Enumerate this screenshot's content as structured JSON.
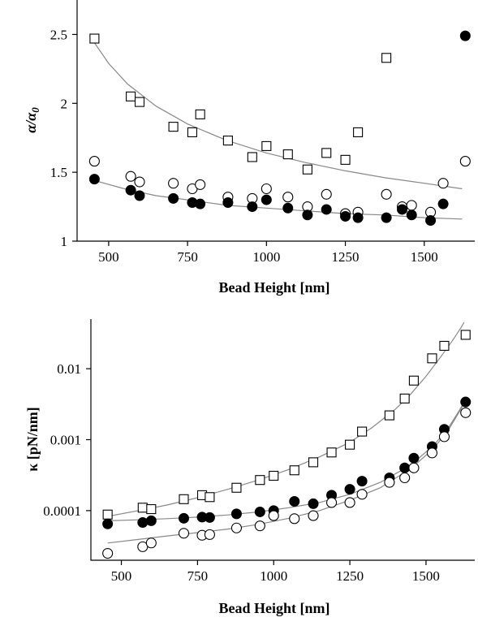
{
  "chart_data": [
    {
      "type": "scatter",
      "xlabel": "Bead Height [nm]",
      "ylabel": "α/α0",
      "ylabel_parts": {
        "main": "α/α",
        "sub": "0"
      },
      "xlim": [
        400,
        1660
      ],
      "ylim": [
        1,
        2.75
      ],
      "xticks": [
        500,
        750,
        1000,
        1250,
        1500
      ],
      "xtick_labels": [
        "500",
        "750",
        "1000",
        "1250",
        "1500"
      ],
      "yticks": [
        1,
        1.5,
        2,
        2.5
      ],
      "ytick_labels": [
        "1",
        "1.5",
        "2",
        "2.5"
      ],
      "grid": false,
      "series": [
        {
          "marker": "open-square",
          "points": [
            {
              "x": 455,
              "y": 2.47
            },
            {
              "x": 570,
              "y": 2.05
            },
            {
              "x": 598,
              "y": 2.01
            },
            {
              "x": 705,
              "y": 1.83
            },
            {
              "x": 765,
              "y": 1.79
            },
            {
              "x": 790,
              "y": 1.92
            },
            {
              "x": 878,
              "y": 1.73
            },
            {
              "x": 955,
              "y": 1.61
            },
            {
              "x": 1000,
              "y": 1.69
            },
            {
              "x": 1068,
              "y": 1.63
            },
            {
              "x": 1130,
              "y": 1.52
            },
            {
              "x": 1190,
              "y": 1.64
            },
            {
              "x": 1250,
              "y": 1.59
            },
            {
              "x": 1290,
              "y": 1.79
            },
            {
              "x": 1380,
              "y": 2.33
            }
          ],
          "fit": [
            {
              "x": 455,
              "y": 2.44
            },
            {
              "x": 500,
              "y": 2.29
            },
            {
              "x": 560,
              "y": 2.14
            },
            {
              "x": 650,
              "y": 1.98
            },
            {
              "x": 750,
              "y": 1.85
            },
            {
              "x": 875,
              "y": 1.73
            },
            {
              "x": 1000,
              "y": 1.64
            },
            {
              "x": 1125,
              "y": 1.57
            },
            {
              "x": 1250,
              "y": 1.51
            },
            {
              "x": 1375,
              "y": 1.46
            },
            {
              "x": 1500,
              "y": 1.42
            },
            {
              "x": 1620,
              "y": 1.38
            }
          ]
        },
        {
          "marker": "open-circle",
          "points": [
            {
              "x": 455,
              "y": 1.58
            },
            {
              "x": 570,
              "y": 1.47
            },
            {
              "x": 598,
              "y": 1.43
            },
            {
              "x": 705,
              "y": 1.42
            },
            {
              "x": 765,
              "y": 1.38
            },
            {
              "x": 790,
              "y": 1.41
            },
            {
              "x": 878,
              "y": 1.32
            },
            {
              "x": 955,
              "y": 1.31
            },
            {
              "x": 1000,
              "y": 1.38
            },
            {
              "x": 1068,
              "y": 1.32
            },
            {
              "x": 1130,
              "y": 1.25
            },
            {
              "x": 1190,
              "y": 1.34
            },
            {
              "x": 1250,
              "y": 1.2
            },
            {
              "x": 1290,
              "y": 1.21
            },
            {
              "x": 1380,
              "y": 1.34
            },
            {
              "x": 1430,
              "y": 1.25
            },
            {
              "x": 1460,
              "y": 1.26
            },
            {
              "x": 1520,
              "y": 1.21
            },
            {
              "x": 1560,
              "y": 1.42
            },
            {
              "x": 1630,
              "y": 1.58
            }
          ]
        },
        {
          "marker": "filled-circle",
          "points": [
            {
              "x": 455,
              "y": 1.45
            },
            {
              "x": 570,
              "y": 1.37
            },
            {
              "x": 598,
              "y": 1.33
            },
            {
              "x": 705,
              "y": 1.31
            },
            {
              "x": 765,
              "y": 1.28
            },
            {
              "x": 790,
              "y": 1.27
            },
            {
              "x": 878,
              "y": 1.28
            },
            {
              "x": 955,
              "y": 1.25
            },
            {
              "x": 1000,
              "y": 1.3
            },
            {
              "x": 1068,
              "y": 1.24
            },
            {
              "x": 1130,
              "y": 1.19
            },
            {
              "x": 1190,
              "y": 1.23
            },
            {
              "x": 1250,
              "y": 1.18
            },
            {
              "x": 1290,
              "y": 1.17
            },
            {
              "x": 1380,
              "y": 1.17
            },
            {
              "x": 1430,
              "y": 1.23
            },
            {
              "x": 1460,
              "y": 1.19
            },
            {
              "x": 1520,
              "y": 1.15
            },
            {
              "x": 1560,
              "y": 1.27
            },
            {
              "x": 1630,
              "y": 2.49
            }
          ],
          "fit": [
            {
              "x": 455,
              "y": 1.44
            },
            {
              "x": 550,
              "y": 1.38
            },
            {
              "x": 650,
              "y": 1.33
            },
            {
              "x": 750,
              "y": 1.3
            },
            {
              "x": 875,
              "y": 1.26
            },
            {
              "x": 1000,
              "y": 1.24
            },
            {
              "x": 1125,
              "y": 1.22
            },
            {
              "x": 1250,
              "y": 1.2
            },
            {
              "x": 1375,
              "y": 1.19
            },
            {
              "x": 1500,
              "y": 1.17
            },
            {
              "x": 1620,
              "y": 1.16
            }
          ]
        }
      ]
    },
    {
      "type": "scatter",
      "xlabel": "Bead Height [nm]",
      "ylabel": "κ [pN/nm]",
      "xlim": [
        400,
        1660
      ],
      "ylim": [
        2e-05,
        0.05
      ],
      "yscale": "log",
      "xticks": [
        500,
        750,
        1000,
        1250,
        1500
      ],
      "xtick_labels": [
        "500",
        "750",
        "1000",
        "1250",
        "1500"
      ],
      "yticks": [
        0.0001,
        0.001,
        0.01
      ],
      "ytick_labels": [
        "0.0001",
        "0.001",
        "0.01"
      ],
      "grid": false,
      "series": [
        {
          "marker": "open-square",
          "points": [
            {
              "x": 455,
              "y": 8.8e-05
            },
            {
              "x": 570,
              "y": 0.00011
            },
            {
              "x": 598,
              "y": 0.000105
            },
            {
              "x": 705,
              "y": 0.000145
            },
            {
              "x": 765,
              "y": 0.000165
            },
            {
              "x": 790,
              "y": 0.000155
            },
            {
              "x": 878,
              "y": 0.00021
            },
            {
              "x": 955,
              "y": 0.00027
            },
            {
              "x": 1000,
              "y": 0.00031
            },
            {
              "x": 1068,
              "y": 0.00037
            },
            {
              "x": 1130,
              "y": 0.00048
            },
            {
              "x": 1190,
              "y": 0.00066
            },
            {
              "x": 1250,
              "y": 0.00085
            },
            {
              "x": 1290,
              "y": 0.0013
            },
            {
              "x": 1380,
              "y": 0.0022
            },
            {
              "x": 1430,
              "y": 0.0038
            },
            {
              "x": 1460,
              "y": 0.0068
            },
            {
              "x": 1520,
              "y": 0.014
            },
            {
              "x": 1560,
              "y": 0.021
            },
            {
              "x": 1630,
              "y": 0.03
            }
          ],
          "fit": [
            {
              "x": 455,
              "y": 8.3e-05
            },
            {
              "x": 550,
              "y": 9.9e-05
            },
            {
              "x": 650,
              "y": 0.00012
            },
            {
              "x": 750,
              "y": 0.000152
            },
            {
              "x": 850,
              "y": 0.0002
            },
            {
              "x": 950,
              "y": 0.00027
            },
            {
              "x": 1050,
              "y": 0.00038
            },
            {
              "x": 1150,
              "y": 0.00057
            },
            {
              "x": 1250,
              "y": 0.00092
            },
            {
              "x": 1325,
              "y": 0.0015
            },
            {
              "x": 1400,
              "y": 0.0027
            },
            {
              "x": 1450,
              "y": 0.0044
            },
            {
              "x": 1500,
              "y": 0.0078
            },
            {
              "x": 1550,
              "y": 0.015
            },
            {
              "x": 1590,
              "y": 0.026
            },
            {
              "x": 1615,
              "y": 0.038
            },
            {
              "x": 1625,
              "y": 0.045
            }
          ]
        },
        {
          "marker": "filled-circle",
          "points": [
            {
              "x": 455,
              "y": 6.5e-05
            },
            {
              "x": 570,
              "y": 6.8e-05
            },
            {
              "x": 598,
              "y": 7.2e-05
            },
            {
              "x": 705,
              "y": 7.8e-05
            },
            {
              "x": 765,
              "y": 8.1e-05
            },
            {
              "x": 790,
              "y": 8e-05
            },
            {
              "x": 878,
              "y": 9e-05
            },
            {
              "x": 955,
              "y": 9.6e-05
            },
            {
              "x": 1000,
              "y": 0.0001
            },
            {
              "x": 1068,
              "y": 0.000135
            },
            {
              "x": 1130,
              "y": 0.000125
            },
            {
              "x": 1190,
              "y": 0.000165
            },
            {
              "x": 1250,
              "y": 0.0002
            },
            {
              "x": 1290,
              "y": 0.00026
            },
            {
              "x": 1380,
              "y": 0.00029
            },
            {
              "x": 1430,
              "y": 0.0004
            },
            {
              "x": 1460,
              "y": 0.00055
            },
            {
              "x": 1520,
              "y": 0.0008
            },
            {
              "x": 1560,
              "y": 0.0014
            },
            {
              "x": 1630,
              "y": 0.0034
            }
          ],
          "fit": [
            {
              "x": 455,
              "y": 7.2e-05
            },
            {
              "x": 550,
              "y": 7.4e-05
            },
            {
              "x": 650,
              "y": 7.7e-05
            },
            {
              "x": 750,
              "y": 8.1e-05
            },
            {
              "x": 850,
              "y": 8.7e-05
            },
            {
              "x": 950,
              "y": 9.6e-05
            },
            {
              "x": 1050,
              "y": 0.00011
            },
            {
              "x": 1150,
              "y": 0.00013
            },
            {
              "x": 1250,
              "y": 0.00017
            },
            {
              "x": 1350,
              "y": 0.00025
            },
            {
              "x": 1450,
              "y": 0.00044
            },
            {
              "x": 1525,
              "y": 0.00083
            },
            {
              "x": 1575,
              "y": 0.0015
            },
            {
              "x": 1610,
              "y": 0.0026
            },
            {
              "x": 1630,
              "y": 0.0037
            }
          ]
        },
        {
          "marker": "open-circle",
          "points": [
            {
              "x": 455,
              "y": 2.5e-05
            },
            {
              "x": 570,
              "y": 3.1e-05
            },
            {
              "x": 598,
              "y": 3.5e-05
            },
            {
              "x": 705,
              "y": 4.8e-05
            },
            {
              "x": 765,
              "y": 4.5e-05
            },
            {
              "x": 790,
              "y": 4.6e-05
            },
            {
              "x": 878,
              "y": 5.7e-05
            },
            {
              "x": 955,
              "y": 6.1e-05
            },
            {
              "x": 1000,
              "y": 8.5e-05
            },
            {
              "x": 1068,
              "y": 7.7e-05
            },
            {
              "x": 1130,
              "y": 8.5e-05
            },
            {
              "x": 1190,
              "y": 0.00013
            },
            {
              "x": 1250,
              "y": 0.00013
            },
            {
              "x": 1290,
              "y": 0.00017
            },
            {
              "x": 1380,
              "y": 0.00025
            },
            {
              "x": 1430,
              "y": 0.00029
            },
            {
              "x": 1460,
              "y": 0.0004
            },
            {
              "x": 1520,
              "y": 0.00065
            },
            {
              "x": 1560,
              "y": 0.0011
            },
            {
              "x": 1630,
              "y": 0.0024
            }
          ],
          "fit": [
            {
              "x": 455,
              "y": 3.5e-05
            },
            {
              "x": 550,
              "y": 3.9e-05
            },
            {
              "x": 650,
              "y": 4.4e-05
            },
            {
              "x": 750,
              "y": 4.9e-05
            },
            {
              "x": 850,
              "y": 5.5e-05
            },
            {
              "x": 950,
              "y": 6.4e-05
            },
            {
              "x": 1050,
              "y": 7.8e-05
            },
            {
              "x": 1150,
              "y": 0.0001
            },
            {
              "x": 1250,
              "y": 0.00014
            },
            {
              "x": 1350,
              "y": 0.00021
            },
            {
              "x": 1450,
              "y": 0.00039
            },
            {
              "x": 1525,
              "y": 0.00075
            },
            {
              "x": 1575,
              "y": 0.0014
            },
            {
              "x": 1610,
              "y": 0.0025
            },
            {
              "x": 1630,
              "y": 0.0035
            }
          ]
        }
      ]
    }
  ]
}
